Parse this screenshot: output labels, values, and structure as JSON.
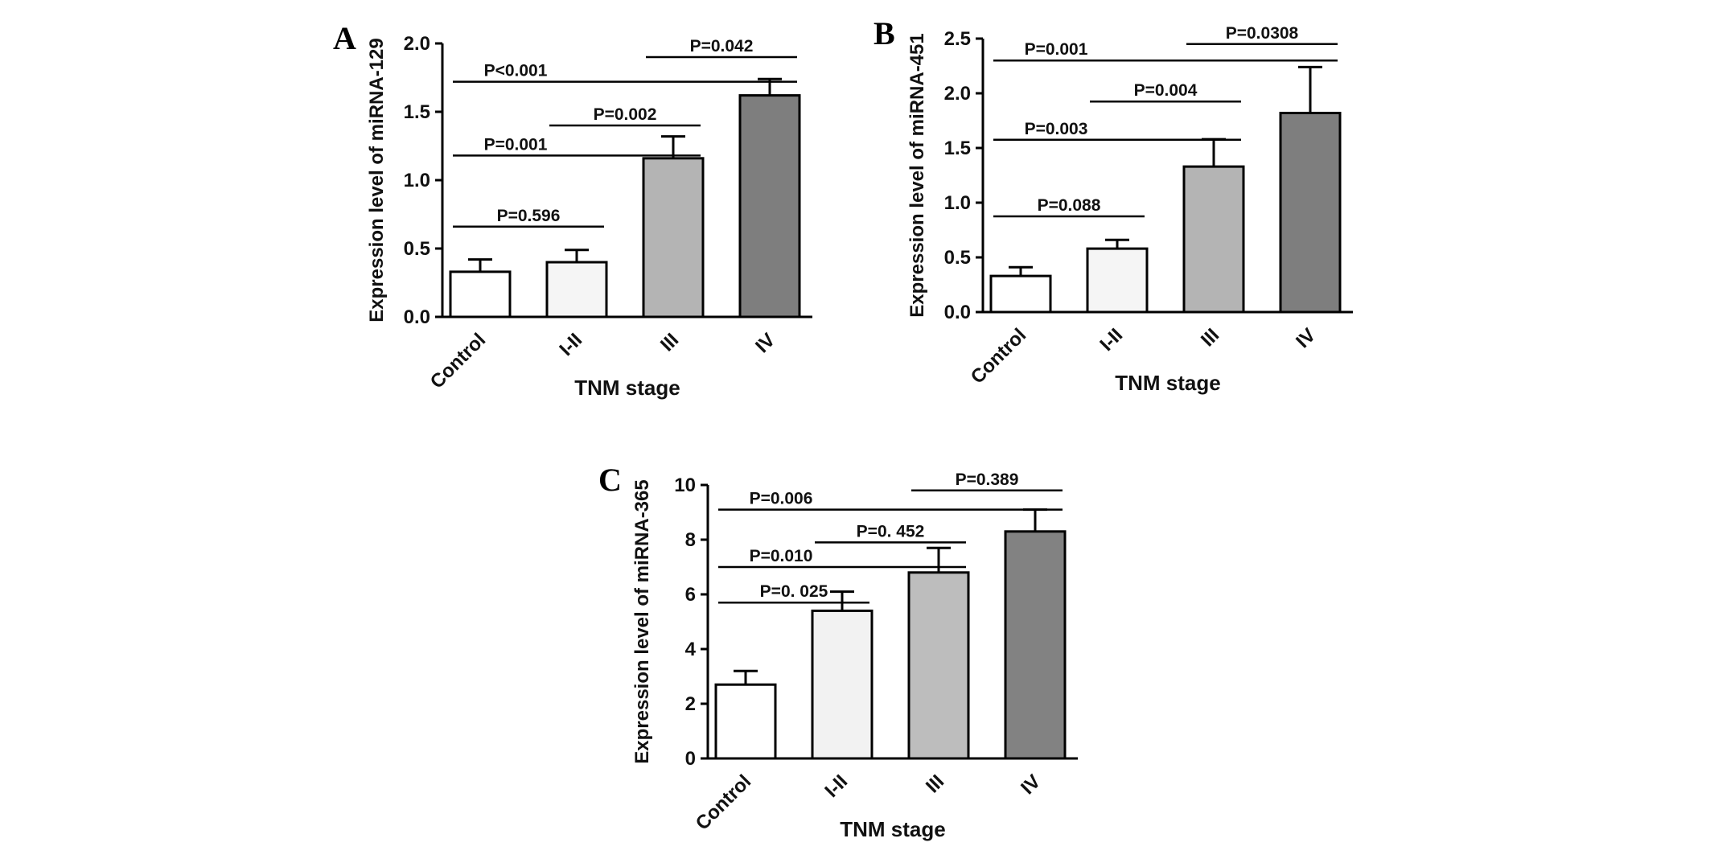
{
  "figure": {
    "background": "#ffffff",
    "axis_color": "#000000",
    "xlabel_shared": "TNM stage"
  },
  "chart_data": [
    {
      "panel_label": "A",
      "type": "bar",
      "title": "",
      "ylabel": "Expression level of miRNA-129",
      "xlabel": "TNM stage",
      "categories": [
        "Control",
        "I-II",
        "III",
        "IV"
      ],
      "values": [
        0.33,
        0.4,
        1.16,
        1.62
      ],
      "errors": [
        0.09,
        0.09,
        0.16,
        0.12
      ],
      "ylim": [
        0,
        2.0
      ],
      "yticks": [
        0.0,
        0.5,
        1.0,
        1.5,
        2.0
      ],
      "ytick_labels": [
        "0.0",
        "0.5",
        "1.0",
        "1.5",
        "2.0"
      ],
      "bar_colors": [
        "#ffffff",
        "#f5f5f5",
        "#b4b4b4",
        "#7e7e7e"
      ],
      "grid": false,
      "legend": "none",
      "significance": [
        {
          "from": 0,
          "to": 1,
          "label": "P=0.596",
          "level": 0.67
        },
        {
          "from": 0,
          "to": 2,
          "label": "P=0.001",
          "level": 0.41
        },
        {
          "from": 1,
          "to": 2,
          "label": "P=0.002",
          "level": 0.3
        },
        {
          "from": 0,
          "to": 3,
          "label": "P<0.001",
          "level": 0.14
        },
        {
          "from": 2,
          "to": 3,
          "label": "P=0.042",
          "level": 0.05
        }
      ]
    },
    {
      "panel_label": "B",
      "type": "bar",
      "title": "",
      "ylabel": "Expression level of miRNA-451",
      "xlabel": "TNM stage",
      "categories": [
        "Control",
        "I-II",
        "III",
        "IV"
      ],
      "values": [
        0.33,
        0.58,
        1.33,
        1.82
      ],
      "errors": [
        0.08,
        0.08,
        0.25,
        0.42
      ],
      "ylim": [
        0,
        2.5
      ],
      "yticks": [
        0.0,
        0.5,
        1.0,
        1.5,
        2.0,
        2.5
      ],
      "ytick_labels": [
        "0.0",
        "0.5",
        "1.0",
        "1.5",
        "2.0",
        "2.5"
      ],
      "bar_colors": [
        "#ffffff",
        "#f5f5f5",
        "#b4b4b4",
        "#7e7e7e"
      ],
      "grid": false,
      "legend": "none",
      "significance": [
        {
          "from": 0,
          "to": 1,
          "label": "P=0.088",
          "level": 0.65
        },
        {
          "from": 0,
          "to": 2,
          "label": "P=0.003",
          "level": 0.37
        },
        {
          "from": 1,
          "to": 2,
          "label": "P=0.004",
          "level": 0.23
        },
        {
          "from": 0,
          "to": 3,
          "label": "P=0.001",
          "level": 0.08
        },
        {
          "from": 2,
          "to": 3,
          "label": "P=0.0308",
          "level": 0.02
        }
      ]
    },
    {
      "panel_label": "C",
      "type": "bar",
      "title": "",
      "ylabel": "Expression level of miRNA-365",
      "xlabel": "TNM stage",
      "categories": [
        "Control",
        "I-II",
        "III",
        "IV"
      ],
      "values": [
        2.7,
        5.4,
        6.8,
        8.3
      ],
      "errors": [
        0.5,
        0.7,
        0.9,
        0.8
      ],
      "ylim": [
        0,
        10
      ],
      "yticks": [
        0,
        2,
        4,
        6,
        8,
        10
      ],
      "ytick_labels": [
        "0",
        "2",
        "4",
        "6",
        "8",
        "10"
      ],
      "bar_colors": [
        "#ffffff",
        "#f2f2f2",
        "#bdbdbd",
        "#828282"
      ],
      "grid": false,
      "legend": "none",
      "significance": [
        {
          "from": 0,
          "to": 1,
          "label": "P=0. 025",
          "level": 0.43
        },
        {
          "from": 0,
          "to": 2,
          "label": "P=0.010",
          "level": 0.3
        },
        {
          "from": 1,
          "to": 2,
          "label": "P=0. 452",
          "level": 0.21
        },
        {
          "from": 0,
          "to": 3,
          "label": "P=0.006",
          "level": 0.09
        },
        {
          "from": 2,
          "to": 3,
          "label": "P=0.389",
          "level": 0.02
        }
      ]
    }
  ]
}
